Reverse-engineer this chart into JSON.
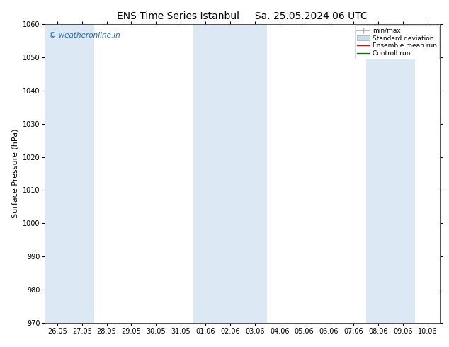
{
  "title_left": "ENS Time Series Istanbul",
  "title_right": "Sa. 25.05.2024 06 UTC",
  "ylabel": "Surface Pressure (hPa)",
  "ylim": [
    970,
    1060
  ],
  "yticks": [
    970,
    980,
    990,
    1000,
    1010,
    1020,
    1030,
    1040,
    1050,
    1060
  ],
  "x_labels": [
    "26.05",
    "27.05",
    "28.05",
    "29.05",
    "30.05",
    "31.05",
    "01.06",
    "02.06",
    "03.06",
    "04.06",
    "05.06",
    "06.06",
    "07.06",
    "08.06",
    "09.06",
    "10.06"
  ],
  "n_ticks": 16,
  "band_indices": [
    0,
    1,
    6,
    7,
    8,
    13,
    14
  ],
  "band_color": "#dce9f5",
  "background_color": "#ffffff",
  "watermark": "© weatheronline.in",
  "watermark_color": "#1a6abf",
  "legend_items": [
    {
      "label": "min/max",
      "color": "#aaaaaa",
      "type": "minmax"
    },
    {
      "label": "Standard deviation",
      "color": "#c8ddf0",
      "type": "fill"
    },
    {
      "label": "Ensemble mean run",
      "color": "#ff0000",
      "type": "line"
    },
    {
      "label": "Controll run",
      "color": "#008000",
      "type": "line"
    }
  ],
  "title_fontsize": 10,
  "tick_fontsize": 7,
  "ylabel_fontsize": 8
}
